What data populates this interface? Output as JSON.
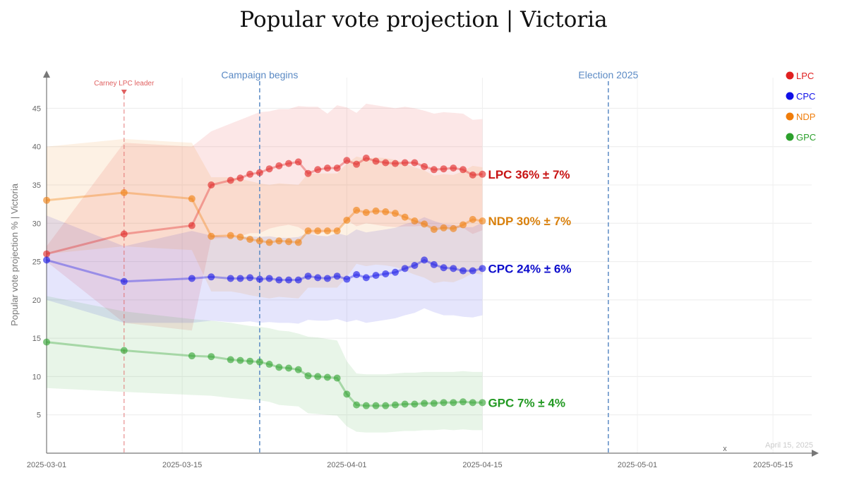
{
  "title": "Popular vote projection | Victoria",
  "chart_data": {
    "type": "line",
    "title": "Popular vote projection | Victoria",
    "xlabel": "x",
    "ylabel": "Popular vote projection % | Victoria",
    "ylim": [
      0,
      49
    ],
    "xlim": [
      "2025-03-01",
      "2025-05-19"
    ],
    "x_ticks": [
      "2025-03-01",
      "2025-03-15",
      "2025-04-01",
      "2025-04-15",
      "2025-05-01",
      "2025-05-15"
    ],
    "y_ticks": [
      5,
      10,
      15,
      20,
      25,
      30,
      35,
      40,
      45
    ],
    "grid": true,
    "legend_position": "top-right",
    "credit": "April 15, 2025",
    "annotations": [
      {
        "text": "Carney LPC leader",
        "date": "2025-03-09",
        "color": "#e06060",
        "style": "red-dashed-marker"
      },
      {
        "text": "Campaign begins",
        "date": "2025-03-23",
        "color": "#5b8ac4",
        "style": "blue-dashed"
      },
      {
        "text": "Election 2025",
        "date": "2025-04-28",
        "color": "#5b8ac4",
        "style": "blue-dashed"
      }
    ],
    "dates": [
      "2025-03-01",
      "2025-03-09",
      "2025-03-16",
      "2025-03-18",
      "2025-03-20",
      "2025-03-21",
      "2025-03-22",
      "2025-03-23",
      "2025-03-24",
      "2025-03-25",
      "2025-03-26",
      "2025-03-27",
      "2025-03-28",
      "2025-03-29",
      "2025-03-30",
      "2025-03-31",
      "2025-04-01",
      "2025-04-02",
      "2025-04-03",
      "2025-04-04",
      "2025-04-05",
      "2025-04-06",
      "2025-04-07",
      "2025-04-08",
      "2025-04-09",
      "2025-04-10",
      "2025-04-11",
      "2025-04-12",
      "2025-04-13",
      "2025-04-14",
      "2025-04-15"
    ],
    "series": [
      {
        "name": "LPC",
        "color": "#e02020",
        "text_color": "#c81414",
        "end_label": "LPC 36% ± 7%",
        "values": [
          26,
          28.6,
          29.7,
          35,
          35.6,
          35.9,
          36.4,
          36.6,
          37.1,
          37.5,
          37.8,
          38,
          36.5,
          37,
          37.2,
          37.2,
          38.2,
          37.7,
          38.5,
          38.1,
          37.9,
          37.8,
          37.9,
          37.9,
          37.4,
          37,
          37.1,
          37.2,
          37,
          36.3,
          36.4
        ],
        "upper": [
          27,
          40.5,
          40,
          42,
          43,
          43.5,
          44,
          44.5,
          44.6,
          44.9,
          44.9,
          45.3,
          45.2,
          45.2,
          44.3,
          45.4,
          45.1,
          44.4,
          45.6,
          45.4,
          45.2,
          45,
          45.2,
          45,
          44.7,
          44.3,
          44.5,
          44.4,
          44.3,
          43.5,
          43.6
        ],
        "lower": [
          25,
          17,
          16,
          28,
          28.1,
          28.3,
          28.7,
          28.7,
          29.3,
          29.6,
          29.8,
          29.5,
          28.7,
          28.6,
          29,
          29.1,
          30.4,
          29.6,
          30,
          29.8,
          29.6,
          29.5,
          29.6,
          29.6,
          29.7,
          29.4,
          29.3,
          29.4,
          29.4,
          28.6,
          29.1
        ]
      },
      {
        "name": "CPC",
        "color": "#1010e8",
        "text_color": "#0c0ccc",
        "end_label": "CPC 24% ± 6%",
        "values": [
          25.2,
          22.4,
          22.8,
          23,
          22.8,
          22.8,
          22.9,
          22.7,
          22.8,
          22.6,
          22.6,
          22.6,
          23.1,
          22.9,
          22.8,
          23.1,
          22.7,
          23.3,
          22.9,
          23.2,
          23.4,
          23.6,
          24.1,
          24.5,
          25.2,
          24.6,
          24.2,
          24.1,
          23.8,
          23.8,
          24.1
        ],
        "upper": [
          31,
          27,
          29,
          28.4,
          28.2,
          28.2,
          28.3,
          28.2,
          28.3,
          28.1,
          28.1,
          28.2,
          28.7,
          28.4,
          28.3,
          28.7,
          28.4,
          29.2,
          28.8,
          29,
          29.2,
          29.4,
          29.9,
          30.2,
          30.8,
          30.3,
          29.9,
          29.8,
          29.5,
          29.5,
          30.1
        ],
        "lower": [
          20,
          17,
          17,
          17.3,
          17.1,
          17.1,
          17.2,
          17,
          17.1,
          17,
          17,
          16.9,
          17.4,
          17.3,
          17.3,
          17.5,
          17.1,
          17.4,
          17,
          17.2,
          17.4,
          17.6,
          18,
          18.3,
          18.9,
          18.4,
          18,
          18,
          17.8,
          17.7,
          18
        ]
      },
      {
        "name": "NDP",
        "color": "#f07d0a",
        "text_color": "#d9800c",
        "end_label": "NDP 30% ± 7%",
        "values": [
          33,
          34,
          33.2,
          28.3,
          28.4,
          28.2,
          27.9,
          27.7,
          27.5,
          27.7,
          27.6,
          27.5,
          29,
          29,
          29,
          29,
          30.4,
          31.7,
          31.4,
          31.6,
          31.5,
          31.3,
          30.8,
          30.3,
          29.9,
          29.2,
          29.4,
          29.3,
          29.8,
          30.5,
          30.3
        ],
        "upper": [
          40,
          41,
          40.5,
          36,
          36,
          35.8,
          35.5,
          35.2,
          35,
          35.2,
          35.1,
          35,
          36.5,
          36.5,
          36.5,
          36.5,
          37.8,
          38.7,
          38.4,
          38.6,
          38.5,
          38.3,
          37.8,
          37.3,
          36.9,
          36.2,
          36.4,
          36.3,
          36.8,
          37.5,
          37.3
        ],
        "lower": [
          26,
          27,
          26.5,
          21.1,
          21.1,
          20.9,
          20.6,
          20.4,
          20.2,
          20.4,
          20.3,
          20.2,
          21.6,
          21.6,
          21.6,
          21.6,
          23,
          24.7,
          24.4,
          24.6,
          24.5,
          24.3,
          23.8,
          23.3,
          22.9,
          22.2,
          22.4,
          22.3,
          22.8,
          23.5,
          23.3
        ]
      },
      {
        "name": "GPC",
        "color": "#2ca02c",
        "text_color": "#229922",
        "end_label": "GPC 7% ± 4%",
        "values": [
          14.5,
          13.4,
          12.7,
          12.6,
          12.2,
          12.1,
          12,
          11.9,
          11.6,
          11.2,
          11.1,
          10.9,
          10.1,
          10,
          9.9,
          9.8,
          7.7,
          6.3,
          6.2,
          6.2,
          6.2,
          6.3,
          6.4,
          6.4,
          6.5,
          6.5,
          6.6,
          6.6,
          6.7,
          6.6,
          6.6
        ],
        "upper": [
          20.5,
          18.5,
          17.5,
          17.3,
          17,
          16.8,
          16.6,
          16.5,
          16.3,
          16,
          15.9,
          15.6,
          15.2,
          15.1,
          14.9,
          14.7,
          12,
          10.4,
          10.3,
          10.3,
          10.3,
          10.4,
          10.5,
          10.5,
          10.6,
          10.6,
          10.6,
          10.6,
          10.7,
          10.6,
          10.6
        ],
        "lower": [
          8.5,
          8,
          7.6,
          7.5,
          7.2,
          7.1,
          7,
          6.9,
          6.7,
          6.3,
          6.2,
          6.1,
          5.2,
          5.1,
          5,
          4.9,
          3.5,
          2.8,
          2.7,
          2.7,
          2.7,
          2.8,
          2.9,
          2.9,
          3,
          3,
          3.1,
          3,
          3.1,
          3,
          3
        ]
      }
    ]
  }
}
